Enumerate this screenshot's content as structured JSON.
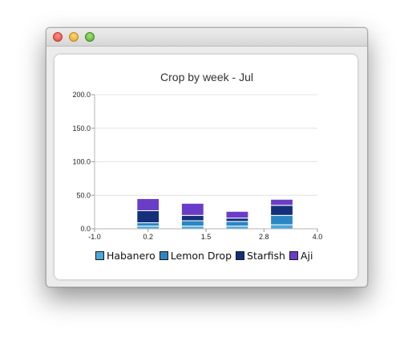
{
  "window": {
    "controls": [
      {
        "name": "close-button"
      },
      {
        "name": "minimize-button"
      },
      {
        "name": "zoom-button"
      }
    ]
  },
  "chart_data": {
    "type": "bar",
    "stacked": true,
    "title": "Crop by week - Jul",
    "xlabel": "",
    "ylabel": "",
    "xlim": [
      -1.0,
      4.0
    ],
    "ylim": [
      0,
      200
    ],
    "x_ticks": [
      "-1.0",
      "0.2",
      "1.5",
      "2.8",
      "4.0"
    ],
    "y_ticks": [
      "0.0",
      "50.0",
      "100.0",
      "150.0",
      "200.0"
    ],
    "x": [
      0.2,
      1.2,
      2.2,
      3.2
    ],
    "bar_width": 0.5,
    "grid": true,
    "legend_position": "bottom",
    "series": [
      {
        "name": "Habanero",
        "color": "#4aa8d8",
        "values": [
          4,
          4,
          4,
          6
        ]
      },
      {
        "name": "Lemon Drop",
        "color": "#2b86c4",
        "values": [
          5,
          8,
          7,
          14
        ]
      },
      {
        "name": "Starfish",
        "color": "#14307a",
        "values": [
          18,
          8,
          5,
          15
        ]
      },
      {
        "name": "Aji",
        "color": "#6a3dc8",
        "values": [
          18,
          18,
          10,
          9
        ]
      }
    ]
  }
}
